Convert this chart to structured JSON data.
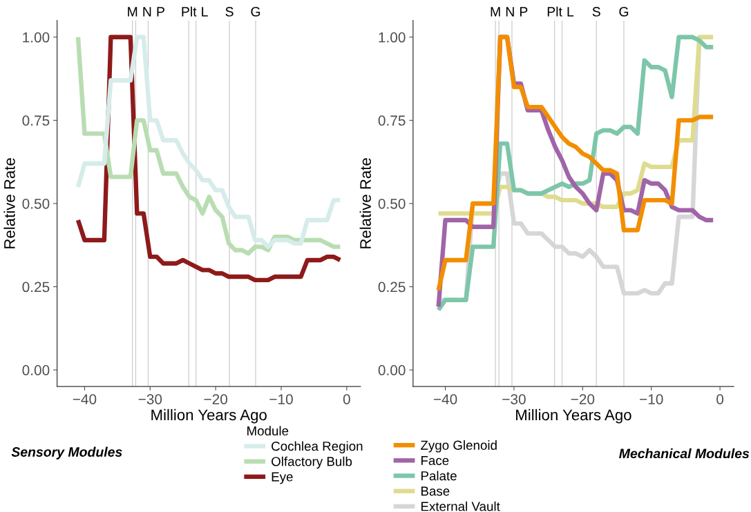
{
  "chart_data": [
    {
      "type": "line",
      "xlabel": "Million Years Ago",
      "ylabel": "Relative Rate",
      "legend_title": "Module",
      "legend": "bottom",
      "grid": false,
      "line_style": "solid",
      "marker": "none",
      "xlim": [
        -44.2,
        2.1
      ],
      "ylim": [
        -0.05,
        1.05
      ],
      "xticks": [
        {
          "value": -40,
          "label": "−40"
        },
        {
          "value": -30,
          "label": "−30"
        },
        {
          "value": -20,
          "label": "−20"
        },
        {
          "value": -10,
          "label": "−10"
        },
        0
      ],
      "yticks": [
        {
          "value": 0,
          "label": "0.00"
        },
        {
          "value": 0.25,
          "label": "0.25"
        },
        {
          "value": 0.5,
          "label": "0.50"
        },
        {
          "value": 0.75,
          "label": "0.75"
        },
        {
          "value": 1,
          "label": "1.00"
        }
      ],
      "x": [
        -41,
        -40,
        -37,
        -36,
        -33,
        -32,
        -31,
        -30,
        -29,
        -28,
        -26,
        -25,
        -24,
        -23,
        -22,
        -21,
        -20,
        -19,
        -18,
        -17,
        -16,
        -15,
        -14,
        -13,
        -12,
        -11,
        -10,
        -9,
        -8,
        -7,
        -6,
        -5,
        -4,
        -3,
        -2,
        -1
      ],
      "ref_lines": [
        {
          "axis": "x",
          "value": -32.7,
          "label": "M",
          "color": "#cccccc"
        },
        {
          "axis": "x",
          "value": -32.2,
          "label": "N",
          "color": "#cccccc"
        },
        {
          "axis": "x",
          "value": -30.3,
          "label": "P",
          "color": "#cccccc"
        },
        {
          "axis": "x",
          "value": -24.1,
          "label": "Plt",
          "color": "#cccccc"
        },
        {
          "axis": "x",
          "value": -23.0,
          "label": "L",
          "color": "#cccccc"
        },
        {
          "axis": "x",
          "value": -17.9,
          "label": "S",
          "color": "#cccccc"
        },
        {
          "axis": "x",
          "value": -13.9,
          "label": "G",
          "color": "#cccccc"
        }
      ],
      "annotations": [
        "Sensory Modules"
      ],
      "series": [
        {
          "name": "Cochlea Region",
          "color": "#d6ecea",
          "values": [
            0.55,
            0.62,
            0.62,
            0.87,
            0.87,
            1.0,
            1.0,
            0.75,
            0.75,
            0.69,
            0.69,
            0.65,
            0.62,
            0.6,
            0.57,
            0.57,
            0.54,
            0.54,
            0.49,
            0.46,
            0.46,
            0.46,
            0.39,
            0.39,
            0.37,
            0.39,
            0.39,
            0.39,
            0.38,
            0.38,
            0.45,
            0.45,
            0.45,
            0.45,
            0.51,
            0.51
          ]
        },
        {
          "name": "Olfactory Bulb",
          "color": "#b9ddb2",
          "values": [
            1.0,
            0.71,
            0.71,
            0.58,
            0.58,
            0.75,
            0.75,
            0.66,
            0.66,
            0.59,
            0.59,
            0.55,
            0.52,
            0.51,
            0.47,
            0.52,
            0.48,
            0.46,
            0.38,
            0.36,
            0.36,
            0.35,
            0.37,
            0.37,
            0.36,
            0.4,
            0.4,
            0.4,
            0.39,
            0.39,
            0.39,
            0.39,
            0.39,
            0.38,
            0.37,
            0.37
          ]
        },
        {
          "name": "Eye",
          "color": "#8e1a1a",
          "values": [
            0.45,
            0.39,
            0.39,
            1.0,
            1.0,
            0.47,
            0.47,
            0.34,
            0.34,
            0.32,
            0.32,
            0.33,
            0.32,
            0.31,
            0.3,
            0.3,
            0.29,
            0.29,
            0.28,
            0.28,
            0.28,
            0.28,
            0.27,
            0.27,
            0.27,
            0.28,
            0.28,
            0.28,
            0.28,
            0.28,
            0.33,
            0.33,
            0.33,
            0.34,
            0.34,
            0.33
          ]
        }
      ]
    },
    {
      "type": "line",
      "xlabel": "Million Years Ago",
      "ylabel": "Relative Rate",
      "legend": "bottom",
      "grid": false,
      "line_style": "solid",
      "marker": "none",
      "xlim": [
        -44.7,
        2.0
      ],
      "ylim": [
        -0.05,
        1.05
      ],
      "xticks": [
        {
          "value": -40,
          "label": "−40"
        },
        {
          "value": -30,
          "label": "−30"
        },
        {
          "value": -20,
          "label": "−20"
        },
        {
          "value": -10,
          "label": "−10"
        },
        0
      ],
      "yticks": [
        {
          "value": 0,
          "label": "0.00"
        },
        {
          "value": 0.25,
          "label": "0.25"
        },
        {
          "value": 0.5,
          "label": "0.50"
        },
        {
          "value": 0.75,
          "label": "0.75"
        },
        {
          "value": 1,
          "label": "1.00"
        }
      ],
      "x": [
        -41,
        -40,
        -37,
        -36,
        -33,
        -32,
        -31,
        -30,
        -29,
        -28,
        -26,
        -25,
        -24,
        -23,
        -22,
        -21,
        -20,
        -19,
        -18,
        -17,
        -16,
        -15,
        -14,
        -13,
        -12,
        -11,
        -10,
        -9,
        -8,
        -7,
        -6,
        -5,
        -4,
        -3,
        -2,
        -1
      ],
      "ref_lines": [
        {
          "axis": "x",
          "value": -32.7,
          "label": "M",
          "color": "#cccccc"
        },
        {
          "axis": "x",
          "value": -32.2,
          "label": "N",
          "color": "#cccccc"
        },
        {
          "axis": "x",
          "value": -30.3,
          "label": "P",
          "color": "#cccccc"
        },
        {
          "axis": "x",
          "value": -24.1,
          "label": "Plt",
          "color": "#cccccc"
        },
        {
          "axis": "x",
          "value": -23.0,
          "label": "L",
          "color": "#cccccc"
        },
        {
          "axis": "x",
          "value": -18.0,
          "label": "S",
          "color": "#cccccc"
        },
        {
          "axis": "x",
          "value": -14.0,
          "label": "G",
          "color": "#cccccc"
        }
      ],
      "annotations": [
        "Mechanical Modules"
      ],
      "series": [
        {
          "name": "Zygo Glenoid",
          "color": "#f28e00",
          "values": [
            0.24,
            0.33,
            0.33,
            0.5,
            0.5,
            1.0,
            1.0,
            0.85,
            0.85,
            0.79,
            0.79,
            0.76,
            0.73,
            0.7,
            0.68,
            0.67,
            0.65,
            0.64,
            0.62,
            0.6,
            0.6,
            0.59,
            0.42,
            0.42,
            0.42,
            0.51,
            0.51,
            0.51,
            0.51,
            0.5,
            0.75,
            0.75,
            0.75,
            0.76,
            0.76,
            0.76
          ]
        },
        {
          "name": "Face",
          "color": "#a064a8",
          "values": [
            0.19,
            0.45,
            0.45,
            0.43,
            0.43,
            1.0,
            1.0,
            0.86,
            0.86,
            0.78,
            0.78,
            0.72,
            0.67,
            0.63,
            0.58,
            0.55,
            0.53,
            0.5,
            0.48,
            0.59,
            0.59,
            0.57,
            0.48,
            0.48,
            0.47,
            0.57,
            0.56,
            0.56,
            0.54,
            0.49,
            0.48,
            0.48,
            0.48,
            0.46,
            0.45,
            0.45
          ]
        },
        {
          "name": "Palate",
          "color": "#7dc6aa",
          "values": [
            0.18,
            0.21,
            0.21,
            0.37,
            0.37,
            0.68,
            0.68,
            0.54,
            0.54,
            0.53,
            0.53,
            0.54,
            0.55,
            0.56,
            0.55,
            0.56,
            0.56,
            0.57,
            0.71,
            0.72,
            0.72,
            0.71,
            0.73,
            0.73,
            0.71,
            0.93,
            0.91,
            0.91,
            0.9,
            0.82,
            1.0,
            1.0,
            1.0,
            0.99,
            0.97,
            0.97
          ]
        },
        {
          "name": "Base",
          "color": "#dfdc90",
          "values": [
            0.47,
            0.47,
            0.47,
            0.47,
            0.47,
            0.55,
            0.55,
            0.54,
            0.54,
            0.53,
            0.53,
            0.52,
            0.52,
            0.51,
            0.51,
            0.51,
            0.5,
            0.5,
            0.5,
            0.49,
            0.49,
            0.49,
            0.53,
            0.53,
            0.54,
            0.62,
            0.61,
            0.61,
            0.61,
            0.61,
            0.69,
            0.69,
            0.69,
            1.0,
            1.0,
            1.0
          ]
        },
        {
          "name": "External Vault",
          "color": "#d6d6d6",
          "values": [
            0.21,
            0.21,
            0.21,
            0.5,
            0.5,
            0.59,
            0.59,
            0.44,
            0.44,
            0.41,
            0.41,
            0.39,
            0.37,
            0.37,
            0.35,
            0.35,
            0.34,
            0.36,
            0.34,
            0.31,
            0.31,
            0.31,
            0.23,
            0.23,
            0.23,
            0.24,
            0.23,
            0.23,
            0.26,
            0.26,
            0.46,
            0.46,
            0.46,
            1.0,
            null,
            null
          ]
        }
      ]
    }
  ]
}
